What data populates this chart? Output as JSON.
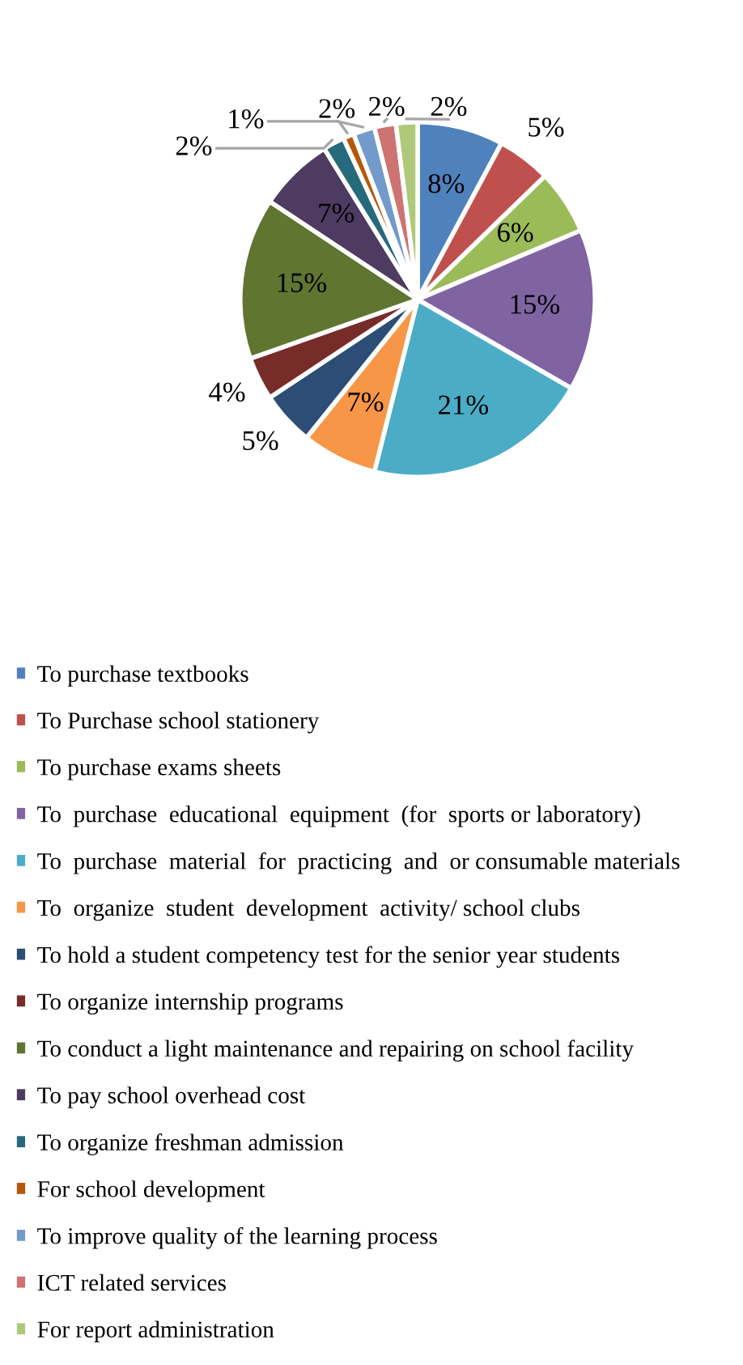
{
  "chart_data": {
    "type": "pie",
    "categories": [
      "To purchase textbooks",
      "To Purchase school stationery",
      "To purchase exams sheets",
      "To  purchase  educational  equipment  (for  sports or laboratory)",
      "To  purchase  material  for  practicing  and  or consumable materials",
      "To  organize  student  development  activity/ school clubs",
      "To hold a student competency test for the senior year students",
      "To organize internship programs",
      "To conduct a light maintenance and repairing on school facility",
      "To pay school overhead cost",
      "To organize freshman admission",
      "For school development",
      "To improve quality of the learning process",
      "ICT related services",
      "For report administration"
    ],
    "values": [
      8,
      5,
      6,
      15,
      21,
      7,
      5,
      4,
      15,
      7,
      2,
      1,
      2,
      2,
      2
    ],
    "value_labels": [
      "8%",
      "5%",
      "6%",
      "15%",
      "21%",
      "7%",
      "5%",
      "4%",
      "15%",
      "7%",
      "2%",
      "1%",
      "2%",
      "2%",
      "2%"
    ],
    "colors": [
      "#4f81bd",
      "#c0504d",
      "#9bbb59",
      "#8064a2",
      "#4bacc6",
      "#f79646",
      "#2c4d75",
      "#772c2a",
      "#5f7530",
      "#4d3b62",
      "#276a7c",
      "#b65708",
      "#729aca",
      "#cd7371",
      "#afc97a"
    ],
    "legend": "bottom"
  }
}
